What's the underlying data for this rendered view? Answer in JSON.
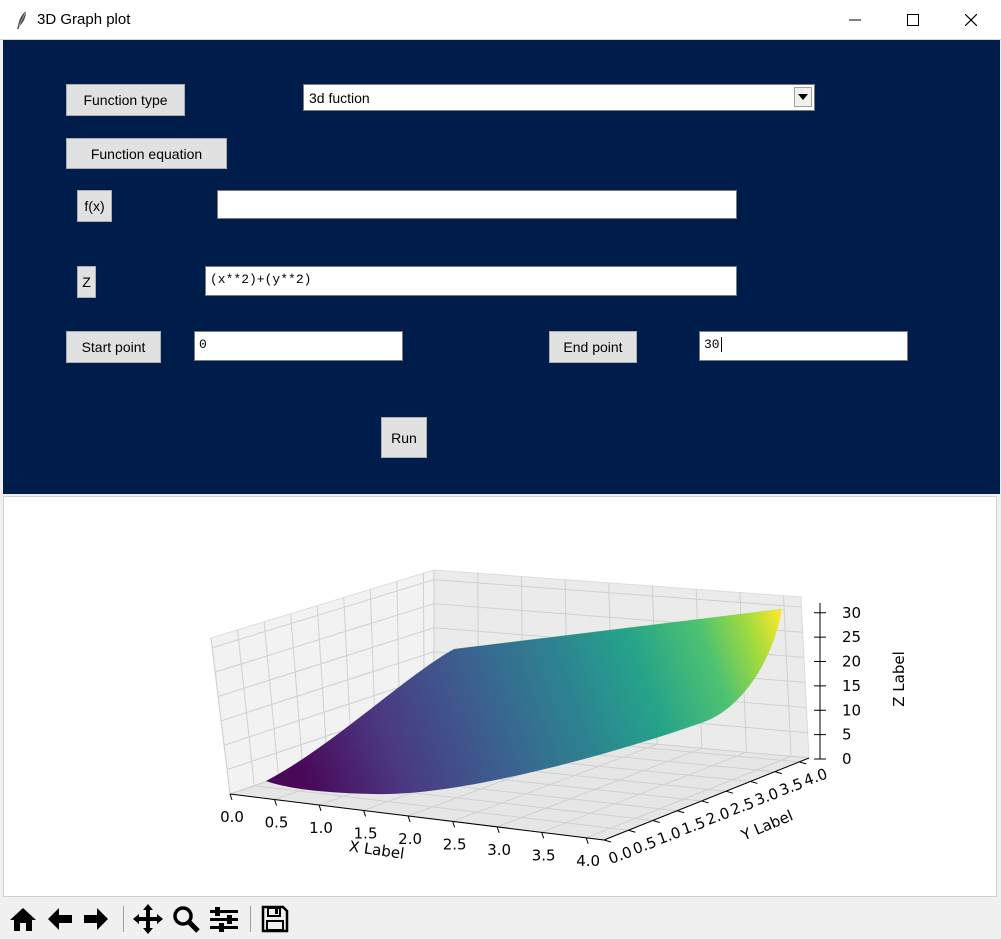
{
  "window": {
    "title": "3D Graph plot"
  },
  "form": {
    "function_type_label": "Function type",
    "function_type_value": "3d fuction",
    "function_equation_label": "Function equation",
    "fx_label": "f(x)",
    "fx_value": "",
    "z_label": "Z",
    "z_value": "(x**2)+(y**2)",
    "start_label": "Start point",
    "start_value": "0",
    "end_label": "End point",
    "end_value": "30",
    "run_label": "Run"
  },
  "chart_data": {
    "type": "surface",
    "function": "(x**2)+(y**2)",
    "colormap": "viridis",
    "xlabel": "X Label",
    "ylabel": "Y Label",
    "zlabel": "Z Label",
    "xlim": [
      0,
      4.2
    ],
    "ylim": [
      0,
      4.2
    ],
    "zlim": [
      0,
      32
    ],
    "xticks": [
      "0.0",
      "0.5",
      "1.0",
      "1.5",
      "2.0",
      "2.5",
      "3.0",
      "3.5",
      "4.0"
    ],
    "yticks": [
      "0.0",
      "0.5",
      "1.0",
      "1.5",
      "2.0",
      "2.5",
      "3.0",
      "3.5",
      "4.0"
    ],
    "zticks": [
      "0",
      "5",
      "10",
      "15",
      "20",
      "25",
      "30"
    ],
    "grid": true
  },
  "toolbar": {
    "icons": [
      "home-icon",
      "back-icon",
      "forward-icon",
      "pan-icon",
      "zoom-icon",
      "configure-icon",
      "save-icon"
    ]
  }
}
